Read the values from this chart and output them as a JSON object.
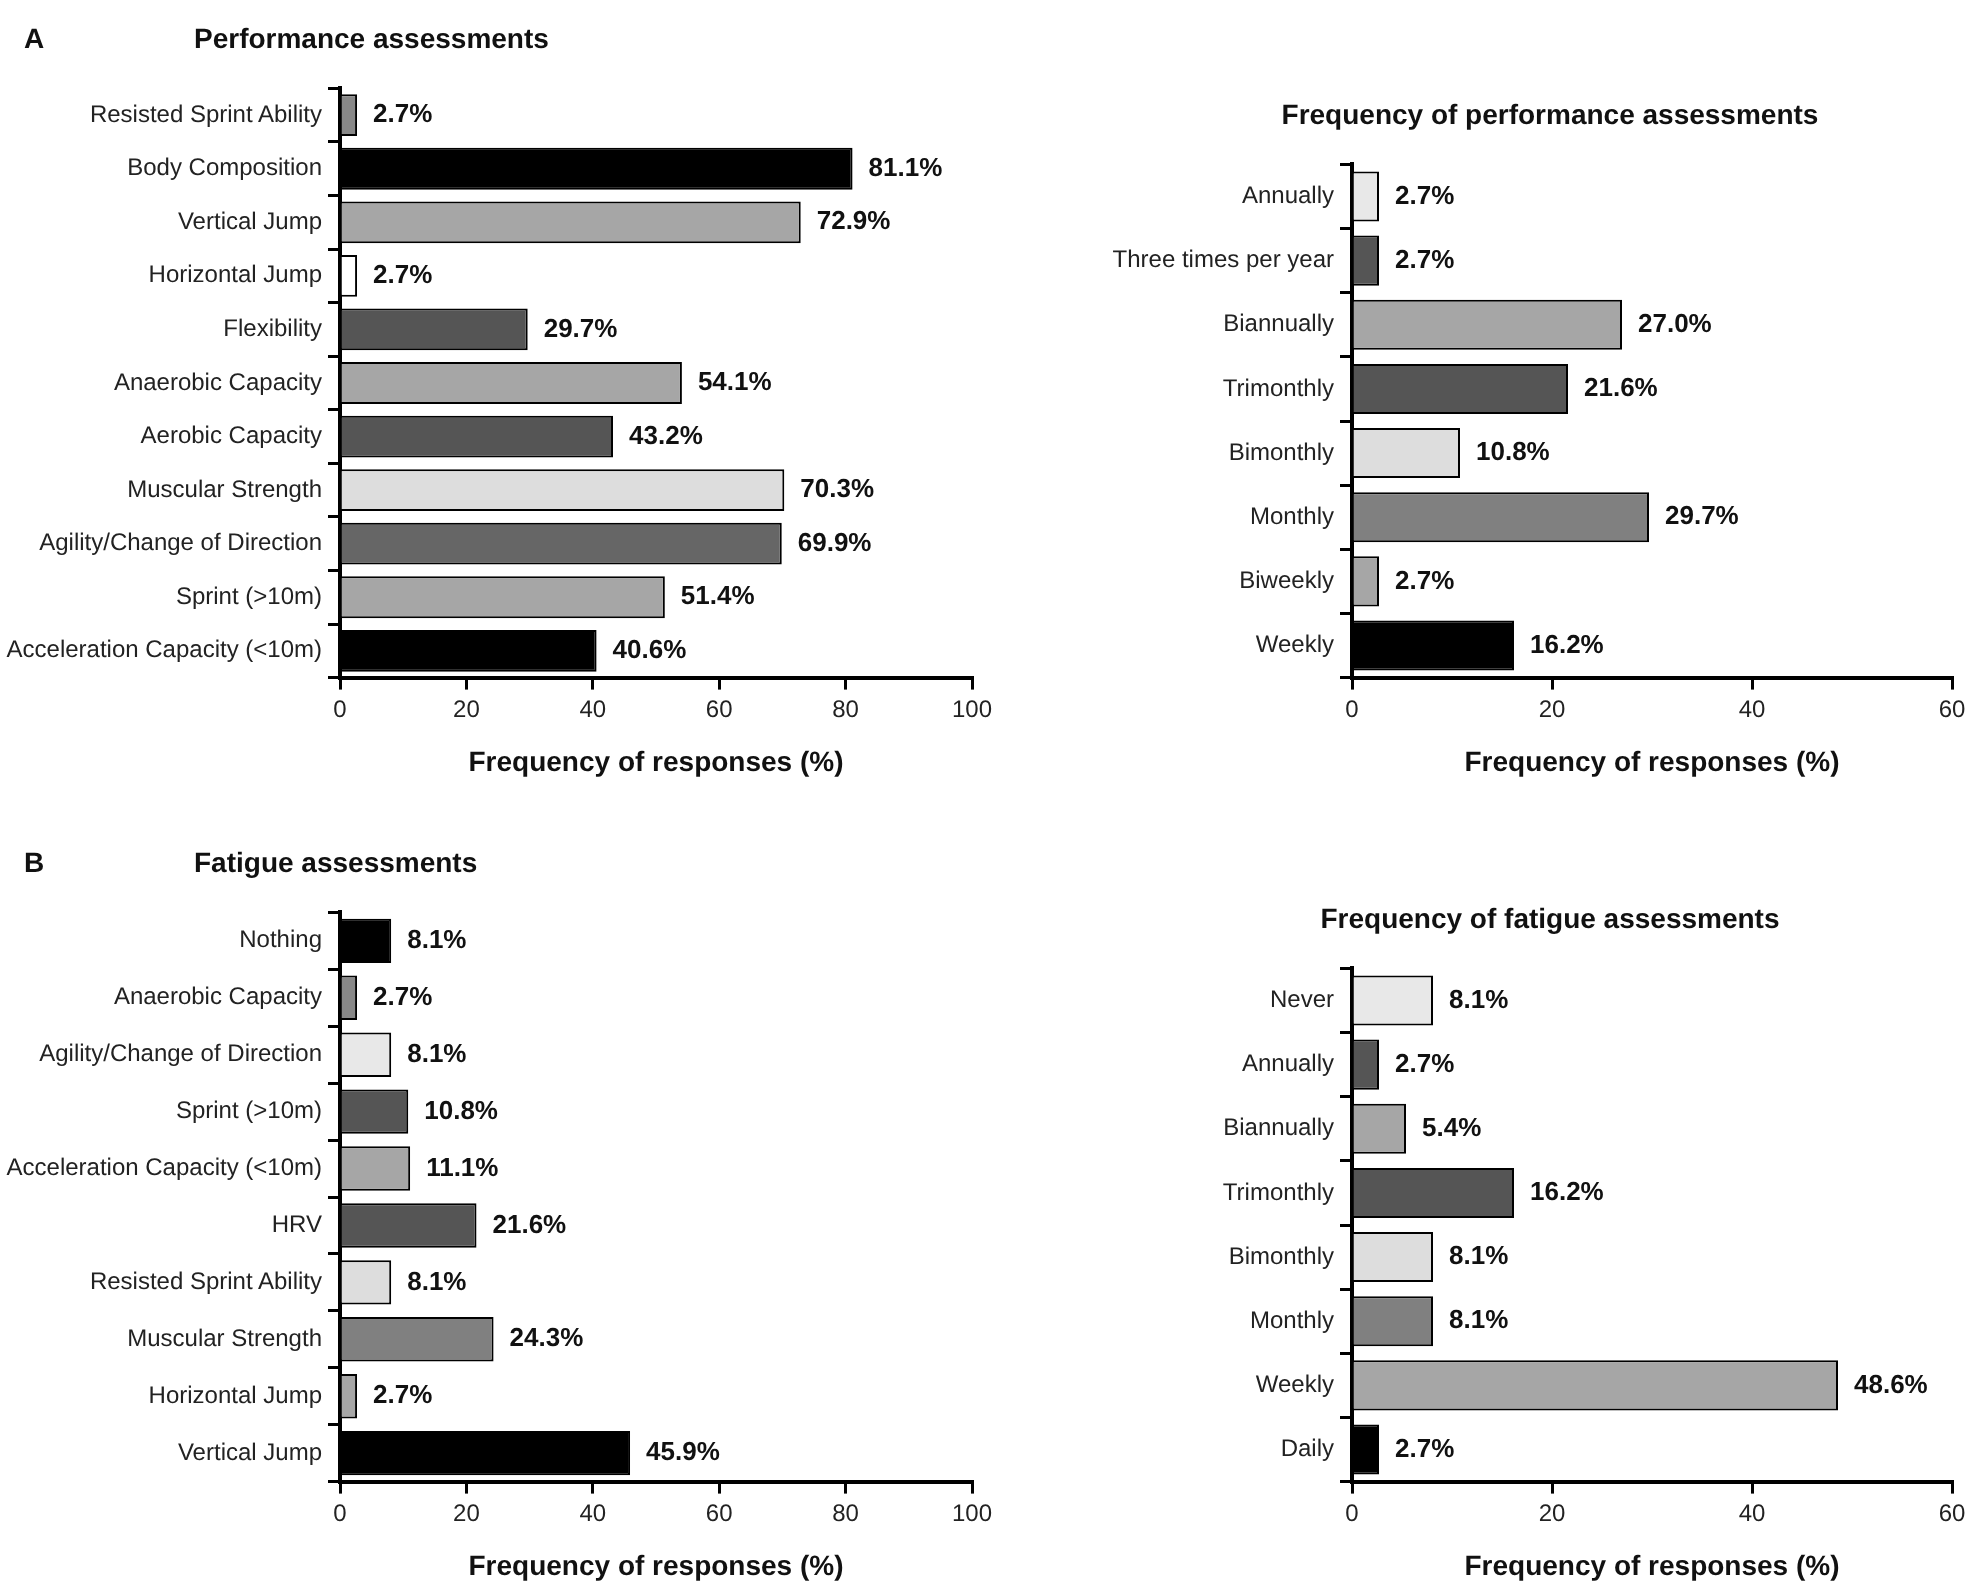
{
  "chart_data": [
    {
      "type": "bar",
      "orientation": "horizontal",
      "title": "Performance assessments",
      "annotations": [
        "A"
      ],
      "xlabel": "Frequency of responses (%)",
      "categories": [
        "Resisted Sprint Ability",
        "Body Composition",
        "Vertical Jump",
        "Horizontal Jump",
        "Flexibility",
        "Anaerobic Capacity",
        "Aerobic Capacity",
        "Muscular Strength",
        "Agility/Change of Direction",
        "Sprint (>10m)",
        "Acceleration Capacity (<10m)"
      ],
      "values": [
        2.7,
        81.1,
        72.9,
        2.7,
        29.7,
        54.1,
        43.2,
        70.3,
        69.9,
        51.4,
        40.6
      ],
      "value_labels": [
        "2.7%",
        "81.1%",
        "72.9%",
        "2.7%",
        "29.7%",
        "54.1%",
        "43.2%",
        "70.3%",
        "69.9%",
        "51.4%",
        "40.6%"
      ],
      "colors": [
        "#888888",
        "#000000",
        "#a6a6a6",
        "#ffffff",
        "#555555",
        "#a6a6a6",
        "#555555",
        "#dddddd",
        "#666666",
        "#a6a6a6",
        "#000000"
      ],
      "xlim": [
        0,
        100
      ],
      "xticks": [
        0,
        20,
        40,
        60,
        80,
        100
      ],
      "grid": false,
      "legend": false
    },
    {
      "type": "bar",
      "orientation": "horizontal",
      "title": "Frequency of performance assessments",
      "xlabel": "Frequency of responses (%)",
      "categories": [
        "Annually",
        "Three times per year",
        "Biannually",
        "Trimonthly",
        "Bimonthly",
        "Monthly",
        "Biweekly",
        "Weekly"
      ],
      "values": [
        2.7,
        2.7,
        27.0,
        21.6,
        10.8,
        29.7,
        2.7,
        16.2
      ],
      "value_labels": [
        "2.7%",
        "2.7%",
        "27.0%",
        "21.6%",
        "10.8%",
        "29.7%",
        "2.7%",
        "16.2%"
      ],
      "colors": [
        "#e8e8e8",
        "#555555",
        "#a6a6a6",
        "#555555",
        "#dddddd",
        "#808080",
        "#a6a6a6",
        "#000000"
      ],
      "xlim": [
        0,
        60
      ],
      "xticks": [
        0,
        20,
        40,
        60
      ],
      "grid": false,
      "legend": false
    },
    {
      "type": "bar",
      "orientation": "horizontal",
      "title": "Fatigue assessments",
      "annotations": [
        "B"
      ],
      "xlabel": "Frequency of responses (%)",
      "categories": [
        "Nothing",
        "Anaerobic Capacity",
        "Agility/Change of Direction",
        "Sprint (>10m)",
        "Acceleration Capacity (<10m)",
        "HRV",
        "Resisted Sprint Ability",
        "Muscular Strength",
        "Horizontal Jump",
        "Vertical Jump"
      ],
      "values": [
        8.1,
        2.7,
        8.1,
        10.8,
        11.1,
        21.6,
        8.1,
        24.3,
        2.7,
        45.9
      ],
      "value_labels": [
        "8.1%",
        "2.7%",
        "8.1%",
        "10.8%",
        "11.1%",
        "21.6%",
        "8.1%",
        "24.3%",
        "2.7%",
        "45.9%"
      ],
      "colors": [
        "#000000",
        "#888888",
        "#e8e8e8",
        "#555555",
        "#a6a6a6",
        "#555555",
        "#dddddd",
        "#808080",
        "#a6a6a6",
        "#000000"
      ],
      "xlim": [
        0,
        100
      ],
      "xticks": [
        0,
        20,
        40,
        60,
        80,
        100
      ],
      "grid": false,
      "legend": false
    },
    {
      "type": "bar",
      "orientation": "horizontal",
      "title": "Frequency of fatigue assessments",
      "xlabel": "Frequency of responses (%)",
      "categories": [
        "Never",
        "Annually",
        "Biannually",
        "Trimonthly",
        "Bimonthly",
        "Monthly",
        "Weekly",
        "Daily"
      ],
      "values": [
        8.1,
        2.7,
        5.4,
        16.2,
        8.1,
        8.1,
        48.6,
        2.7
      ],
      "value_labels": [
        "8.1%",
        "2.7%",
        "5.4%",
        "16.2%",
        "8.1%",
        "8.1%",
        "48.6%",
        "2.7%"
      ],
      "colors": [
        "#e8e8e8",
        "#555555",
        "#a6a6a6",
        "#555555",
        "#dddddd",
        "#808080",
        "#a6a6a6",
        "#000000"
      ],
      "xlim": [
        0,
        60
      ],
      "xticks": [
        0,
        20,
        40,
        60
      ],
      "grid": false,
      "legend": false
    }
  ]
}
